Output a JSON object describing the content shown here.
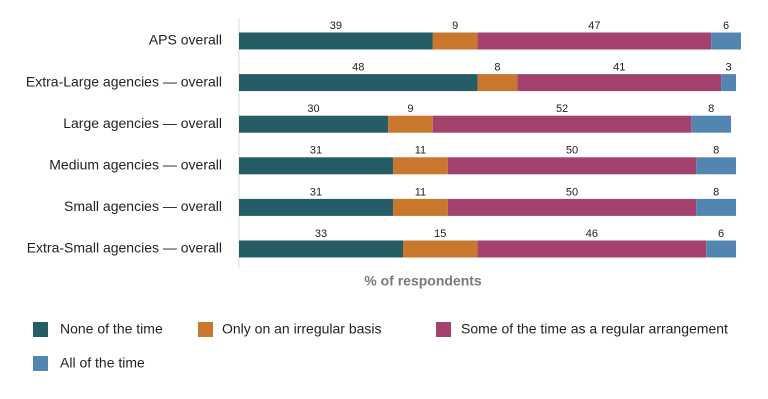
{
  "chart_data": {
    "type": "stacked-bar",
    "orientation": "horizontal",
    "x_label": "% of respondents",
    "categories": [
      "APS overall",
      "Extra-Large agencies — overall",
      "Large agencies — overall",
      "Medium agencies — overall",
      "Small agencies — overall",
      "Extra-Small agencies — overall"
    ],
    "series": [
      {
        "name": "None of the time",
        "color": "#265c66",
        "values": [
          39,
          48,
          30,
          31,
          31,
          33
        ]
      },
      {
        "name": "Only on an irregular basis",
        "color": "#c8772c",
        "values": [
          9,
          8,
          9,
          11,
          11,
          15
        ]
      },
      {
        "name": "Some of the time as a regular arrangement",
        "color": "#a3416f",
        "values": [
          47,
          41,
          52,
          50,
          50,
          46
        ]
      },
      {
        "name": "All of the time",
        "color": "#5286b0",
        "values": [
          6,
          3,
          8,
          8,
          8,
          6
        ]
      }
    ],
    "xlim": [
      0,
      101
    ]
  }
}
